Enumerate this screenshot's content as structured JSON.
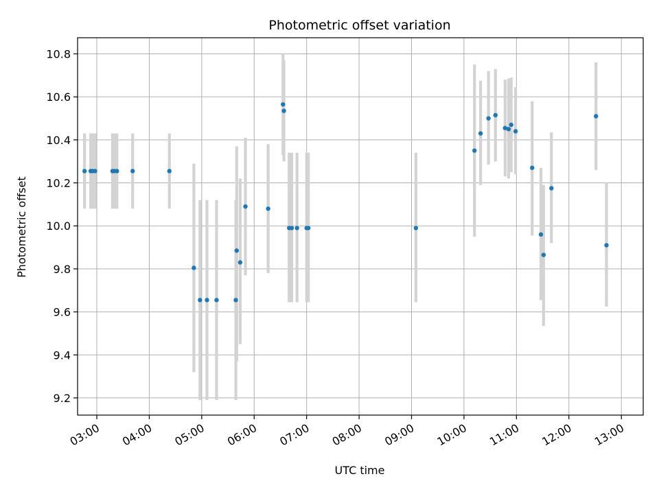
{
  "chart_data": {
    "type": "scatter",
    "title": "Photometric offset variation",
    "xlabel": "UTC time",
    "ylabel": "Photometric offset",
    "x_unit": "UTC time (HH:MM)",
    "xlim": [
      "02:38",
      "13:25"
    ],
    "ylim": [
      9.12,
      10.875
    ],
    "x_ticks": [
      "03:00",
      "04:00",
      "05:00",
      "06:00",
      "07:00",
      "08:00",
      "09:00",
      "10:00",
      "11:00",
      "12:00",
      "13:00"
    ],
    "y_ticks": [
      9.2,
      9.4,
      9.6,
      9.8,
      10.0,
      10.2,
      10.4,
      10.6,
      10.8
    ],
    "y_tick_labels": [
      "9.2",
      "9.4",
      "9.6",
      "9.8",
      "10.0",
      "10.2",
      "10.4",
      "10.6",
      "10.8"
    ],
    "grid": true,
    "point_color": "#1f77b4",
    "errorbar_color": "#d3d3d3",
    "points": [
      {
        "x": "02:46",
        "y": 10.255,
        "low": 10.08,
        "high": 10.43
      },
      {
        "x": "02:53",
        "y": 10.255,
        "low": 10.08,
        "high": 10.43
      },
      {
        "x": "02:55",
        "y": 10.255,
        "low": 10.08,
        "high": 10.43
      },
      {
        "x": "02:58",
        "y": 10.255,
        "low": 10.08,
        "high": 10.43
      },
      {
        "x": "03:18",
        "y": 10.255,
        "low": 10.08,
        "high": 10.43
      },
      {
        "x": "03:20",
        "y": 10.255,
        "low": 10.08,
        "high": 10.43
      },
      {
        "x": "03:23",
        "y": 10.255,
        "low": 10.08,
        "high": 10.43
      },
      {
        "x": "03:41",
        "y": 10.255,
        "low": 10.08,
        "high": 10.43
      },
      {
        "x": "04:23",
        "y": 10.255,
        "low": 10.08,
        "high": 10.43
      },
      {
        "x": "04:51",
        "y": 9.805,
        "low": 9.32,
        "high": 10.29
      },
      {
        "x": "04:58",
        "y": 9.655,
        "low": 9.19,
        "high": 10.12
      },
      {
        "x": "05:06",
        "y": 9.655,
        "low": 9.19,
        "high": 10.12
      },
      {
        "x": "05:17",
        "y": 9.655,
        "low": 9.19,
        "high": 10.12
      },
      {
        "x": "05:39",
        "y": 9.655,
        "low": 9.19,
        "high": 10.12
      },
      {
        "x": "05:40",
        "y": 9.885,
        "low": 9.37,
        "high": 10.37
      },
      {
        "x": "05:44",
        "y": 9.83,
        "low": 9.45,
        "high": 10.22
      },
      {
        "x": "05:50",
        "y": 10.09,
        "low": 9.77,
        "high": 10.41
      },
      {
        "x": "06:16",
        "y": 10.08,
        "low": 9.78,
        "high": 10.38
      },
      {
        "x": "06:33",
        "y": 10.565,
        "low": 10.33,
        "high": 10.8
      },
      {
        "x": "06:34",
        "y": 10.535,
        "low": 10.3,
        "high": 10.77
      },
      {
        "x": "06:40",
        "y": 9.99,
        "low": 9.645,
        "high": 10.34
      },
      {
        "x": "06:43",
        "y": 9.99,
        "low": 9.645,
        "high": 10.34
      },
      {
        "x": "06:49",
        "y": 9.99,
        "low": 9.645,
        "high": 10.34
      },
      {
        "x": "07:00",
        "y": 9.99,
        "low": 9.645,
        "high": 10.34
      },
      {
        "x": "07:02",
        "y": 9.99,
        "low": 9.645,
        "high": 10.34
      },
      {
        "x": "09:05",
        "y": 9.99,
        "low": 9.645,
        "high": 10.34
      },
      {
        "x": "10:12",
        "y": 10.35,
        "low": 9.95,
        "high": 10.75
      },
      {
        "x": "10:19",
        "y": 10.43,
        "low": 10.19,
        "high": 10.675
      },
      {
        "x": "10:28",
        "y": 10.5,
        "low": 10.285,
        "high": 10.72
      },
      {
        "x": "10:36",
        "y": 10.515,
        "low": 10.3,
        "high": 10.73
      },
      {
        "x": "10:47",
        "y": 10.455,
        "low": 10.23,
        "high": 10.68
      },
      {
        "x": "10:51",
        "y": 10.45,
        "low": 10.22,
        "high": 10.685
      },
      {
        "x": "10:54",
        "y": 10.47,
        "low": 10.25,
        "high": 10.69
      },
      {
        "x": "10:59",
        "y": 10.44,
        "low": 10.24,
        "high": 10.645
      },
      {
        "x": "11:18",
        "y": 10.27,
        "low": 9.955,
        "high": 10.58
      },
      {
        "x": "11:28",
        "y": 9.96,
        "low": 9.655,
        "high": 10.27
      },
      {
        "x": "11:31",
        "y": 9.865,
        "low": 9.535,
        "high": 10.19
      },
      {
        "x": "11:40",
        "y": 10.175,
        "low": 9.92,
        "high": 10.435
      },
      {
        "x": "12:31",
        "y": 10.51,
        "low": 10.26,
        "high": 10.76
      },
      {
        "x": "12:43",
        "y": 9.91,
        "low": 9.625,
        "high": 10.2
      }
    ]
  }
}
